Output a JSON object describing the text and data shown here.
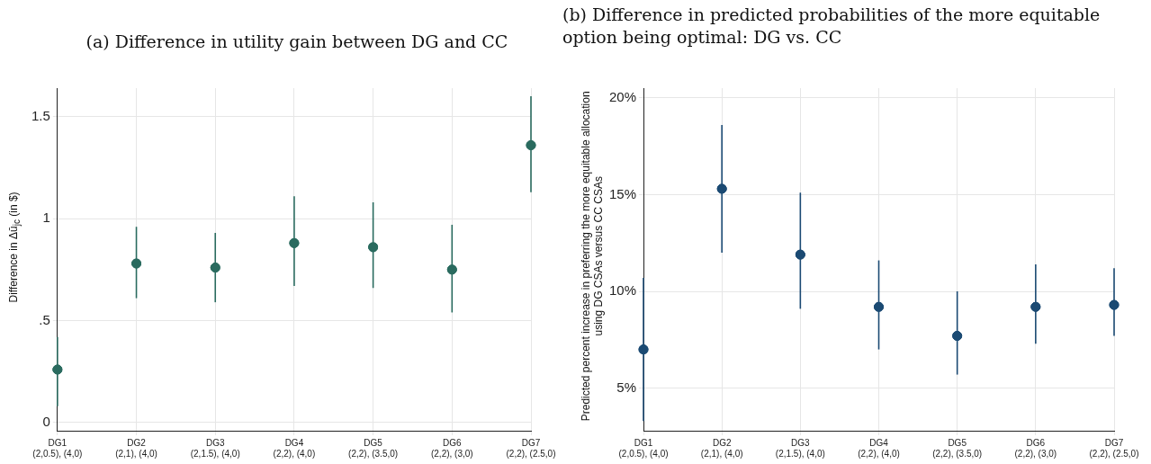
{
  "chart_data": [
    {
      "type": "scatter",
      "title": "(a) Difference in utility gain between DG and CC",
      "ylabel": "Difference in Δū$_{jc}$ (in $)",
      "categories": [
        "DG1\n(2,0.5), (4,0)",
        "DG2\n(2,1), (4,0)",
        "DG3\n(2,1.5), (4,0)",
        "DG4\n(2,2), (4,0)",
        "DG5\n(2,2), (3.5,0)",
        "DG6\n(2,2), (3,0)",
        "DG7\n(2,2), (2.5,0)"
      ],
      "series": [
        {
          "color": "#2a6b5f",
          "values": [
            0.26,
            0.78,
            0.76,
            0.88,
            0.86,
            0.75,
            1.36
          ],
          "errors": [
            [
              0.08,
              0.42
            ],
            [
              0.61,
              0.96
            ],
            [
              0.59,
              0.93
            ],
            [
              0.67,
              1.11
            ],
            [
              0.66,
              1.08
            ],
            [
              0.54,
              0.97
            ],
            [
              1.13,
              1.6
            ]
          ]
        }
      ],
      "ylim": [
        -0.04,
        1.64
      ],
      "yticks": [
        0,
        {
          "value": 0.5,
          "label": ".5"
        },
        1,
        1.5
      ],
      "grid": true,
      "marker": "circle",
      "legend": false
    },
    {
      "type": "scatter",
      "title": "(b) Difference in predicted probabilities of the more equitable\noption being optimal: DG vs. CC",
      "ylabel": "Predicted percent increase in preferring the more equitable allocation\nusing DG CSAs versus CC CSAs",
      "categories": [
        "DG1\n(2,0.5), (4,0)",
        "DG2\n(2,1), (4,0)",
        "DG3\n(2,1.5), (4,0)",
        "DG4\n(2,2), (4,0)",
        "DG5\n(2,2), (3.5,0)",
        "DG6\n(2,2), (3,0)",
        "DG7\n(2,2), (2.5,0)"
      ],
      "series": [
        {
          "color": "#1b4a73",
          "values": [
            7.0,
            15.3,
            11.9,
            9.2,
            7.7,
            9.2,
            9.3
          ],
          "errors": [
            [
              3.3,
              10.7
            ],
            [
              12.0,
              18.6
            ],
            [
              9.1,
              15.1
            ],
            [
              7.0,
              11.6
            ],
            [
              5.7,
              10.0
            ],
            [
              7.3,
              11.4
            ],
            [
              7.7,
              11.2
            ]
          ]
        }
      ],
      "ylim": [
        2.8,
        20.5
      ],
      "yticks": [
        {
          "value": 5,
          "label": "5%"
        },
        {
          "value": 10,
          "label": "10%"
        },
        {
          "value": 15,
          "label": "15%"
        },
        {
          "value": 20,
          "label": "20%"
        }
      ],
      "grid": true,
      "marker": "circle",
      "legend": false
    }
  ]
}
